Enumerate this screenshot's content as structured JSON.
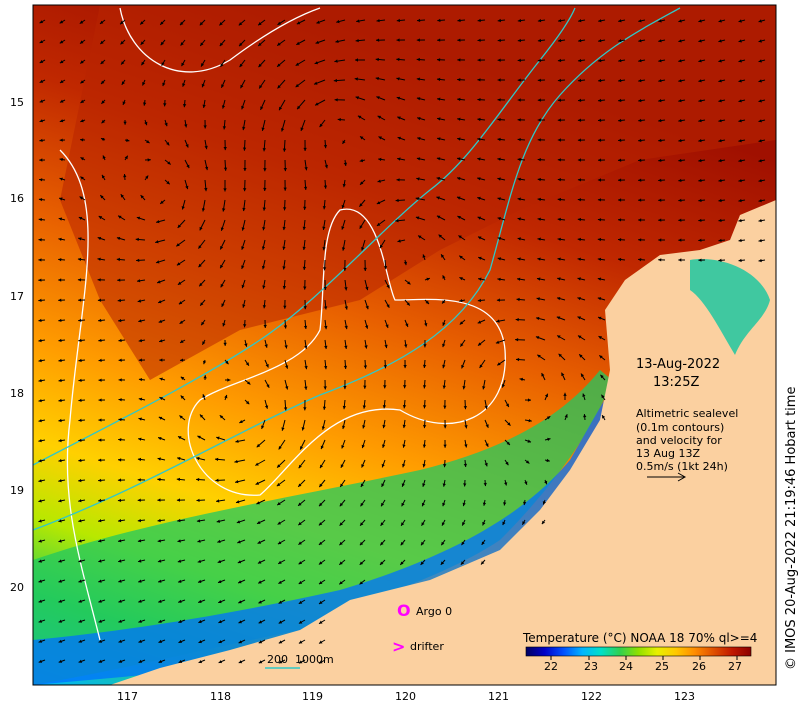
{
  "map": {
    "lon_ticks": [
      "117",
      "118",
      "119",
      "120",
      "121",
      "122",
      "123"
    ],
    "lat_ticks": [
      "15",
      "16",
      "17",
      "18",
      "19",
      "20"
    ],
    "date": "13-Aug-2022",
    "time": "13:25Z",
    "annotation_lines": [
      "Altimetric sealevel",
      "(0.1m contours)",
      "and velocity for",
      "13 Aug 13Z",
      "0.5m/s (1kt 24h)"
    ],
    "legend": {
      "argo": "Argo 0",
      "drifter": "drifter",
      "argo_symbol": "O",
      "drifter_symbol": ">"
    },
    "bathymetry_label": "200  1000m",
    "colorbar": {
      "title": "Temperature (°C) NOAA 18 70% ql>=4",
      "ticks": [
        "22",
        "23",
        "24",
        "25",
        "26",
        "27"
      ],
      "colors": [
        "#000060",
        "#0000c8",
        "#0050ff",
        "#00b4ff",
        "#00e0c8",
        "#30d050",
        "#90e000",
        "#e8f000",
        "#ffc800",
        "#ff8c00",
        "#e05000",
        "#c01800",
        "#8c0000"
      ]
    },
    "credit": "© IMOS 20-Aug-2022 21:19:46 Hobart time",
    "colors": {
      "land": "#fbd0a0",
      "contour": "#ffffff",
      "bathymetry": "#30c8c8",
      "argo": "#ff00ff",
      "drifter": "#ff00ff"
    }
  }
}
